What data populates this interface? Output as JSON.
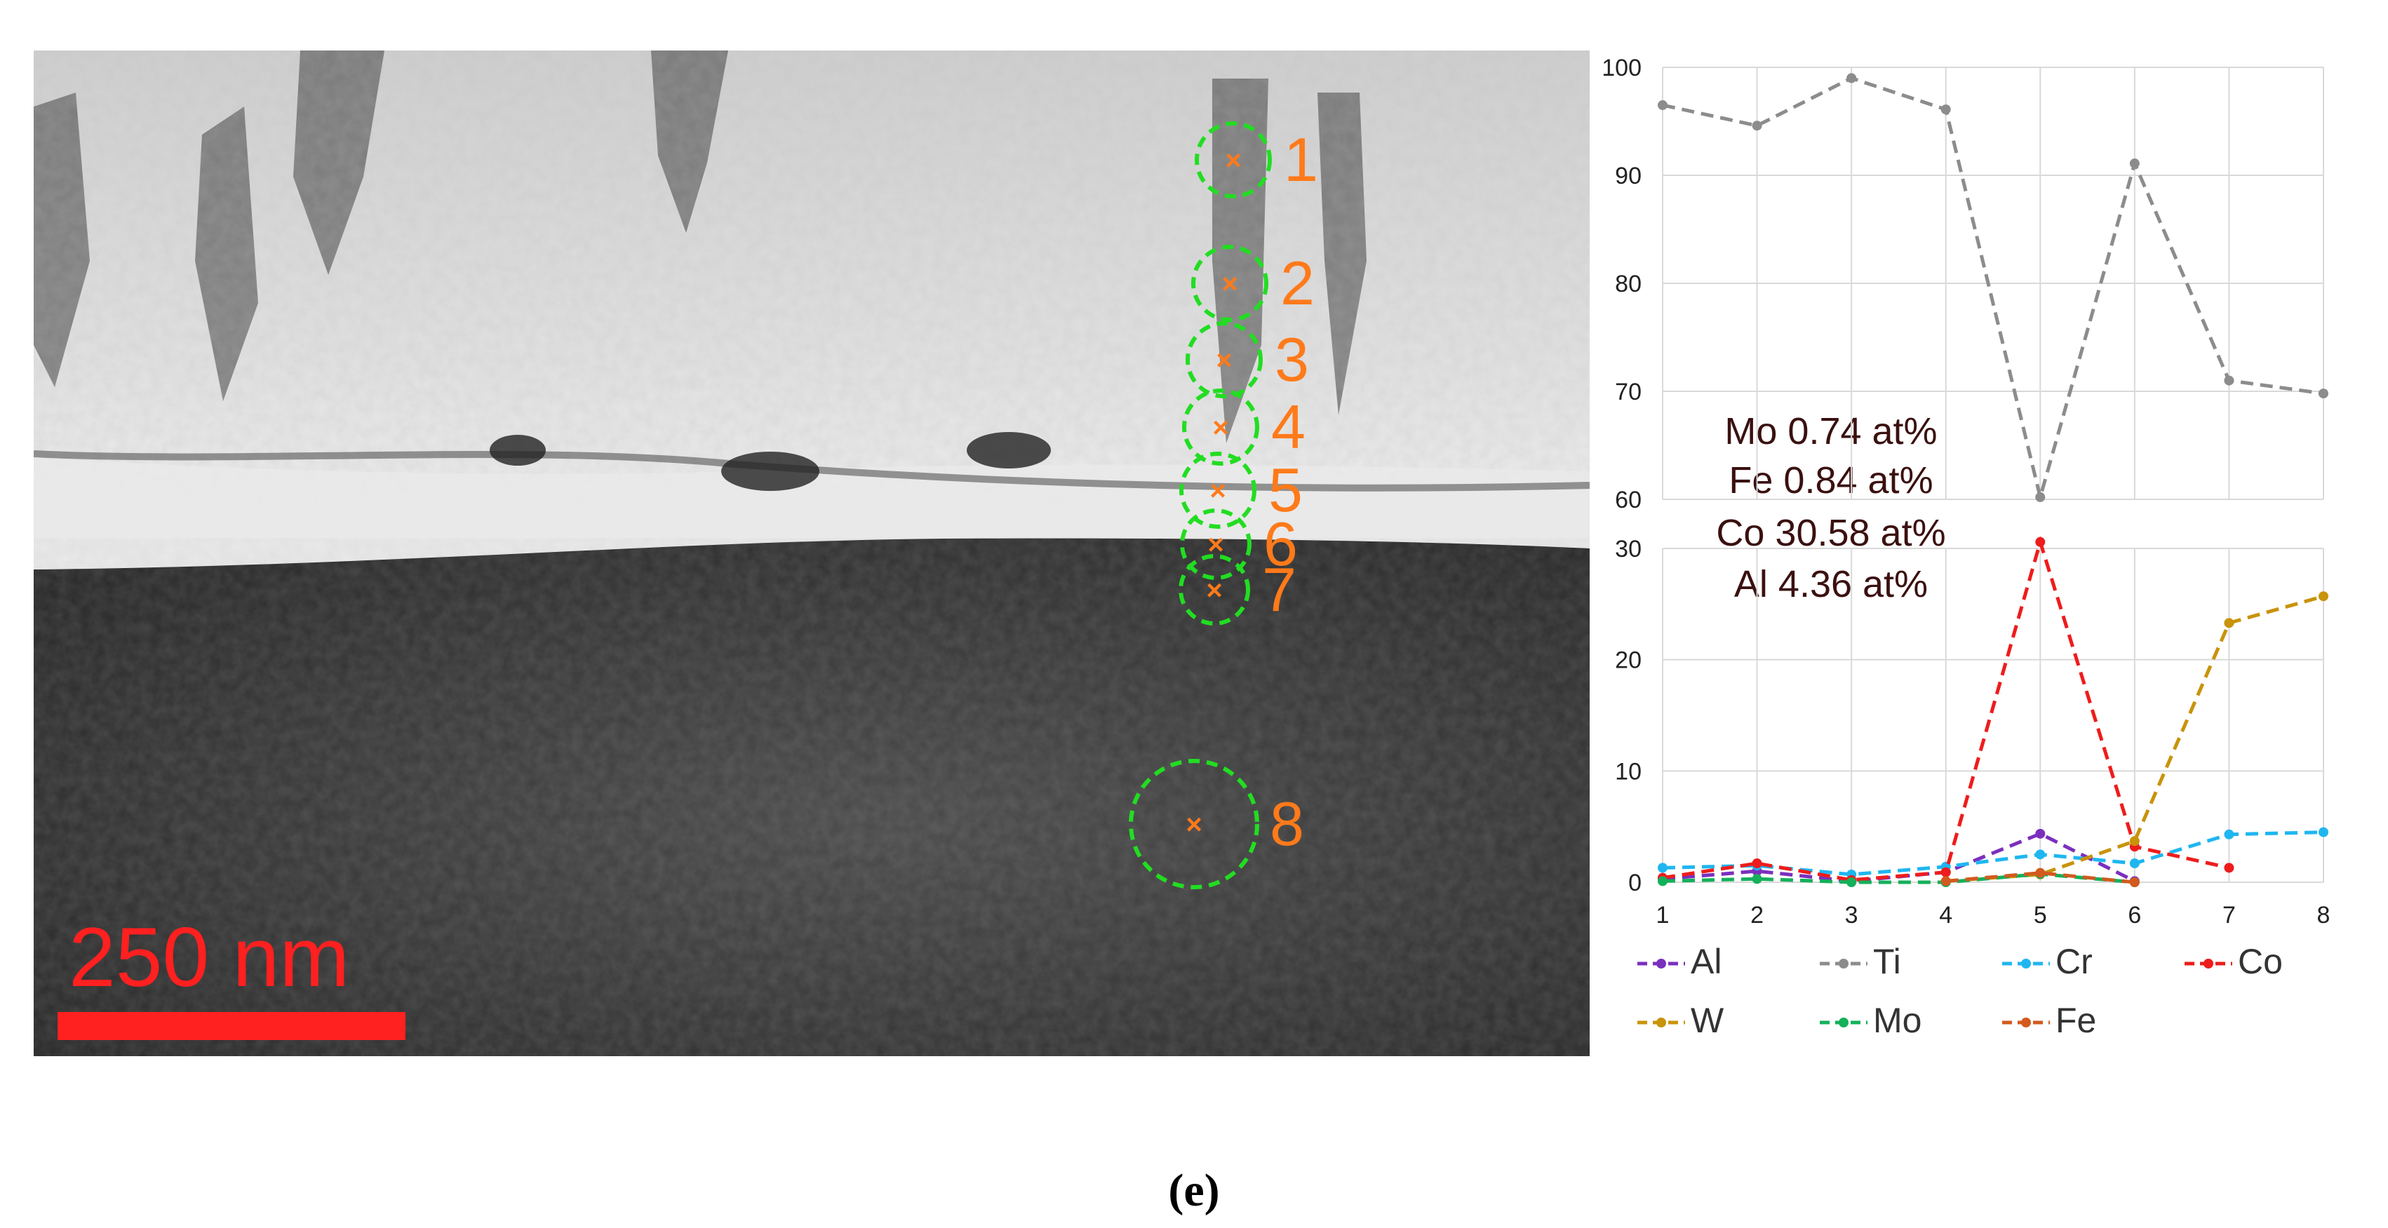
{
  "micrograph": {
    "scale_bar_label": "250 nm",
    "points": [
      "1",
      "2",
      "3",
      "4",
      "5",
      "6",
      "7",
      "8"
    ]
  },
  "annotation": {
    "lines": [
      "Mo 0.74 at%",
      "Fe 0.84 at%",
      "Co 30.58 at%",
      "Al 4.36 at%"
    ]
  },
  "caption": "(e)",
  "colors": {
    "Al": "#7b2fbe",
    "Ti": "#8c8c8c",
    "Cr": "#1fb6f0",
    "Co": "#ee1c1c",
    "W": "#c9930a",
    "Mo": "#14b05a",
    "Fe": "#d25a1e",
    "marker_ring": "#22dd22",
    "marker_label": "#ff7a1a",
    "scale": "#ff2020"
  },
  "chart_data": [
    {
      "type": "line",
      "title": "",
      "xlabel": "",
      "ylabel": "",
      "ylim": [
        60,
        100
      ],
      "yticks": [
        60,
        70,
        80,
        90,
        100
      ],
      "grid": true,
      "series": [
        {
          "name": "Ti",
          "x": [
            1,
            2,
            3,
            4,
            5,
            6,
            7,
            8
          ],
          "values": [
            96.5,
            94.6,
            99.0,
            96.1,
            60.2,
            91.1,
            71.0,
            69.8
          ]
        }
      ]
    },
    {
      "type": "line",
      "title": "",
      "xlabel": "",
      "ylabel": "",
      "ylim": [
        0,
        30
      ],
      "yticks": [
        0,
        10,
        20,
        30
      ],
      "xticks": [
        1,
        2,
        3,
        4,
        5,
        6,
        7,
        8
      ],
      "grid": true,
      "legend_placement": "bottom",
      "series": [
        {
          "name": "Al",
          "x": [
            1,
            2,
            3,
            4,
            5,
            6
          ],
          "values": [
            0.3,
            1.0,
            0.1,
            0.9,
            4.36,
            0.1
          ]
        },
        {
          "name": "Cr",
          "x": [
            1,
            2,
            3,
            4,
            5,
            6,
            7,
            8
          ],
          "values": [
            1.3,
            1.5,
            0.7,
            1.4,
            2.5,
            1.7,
            4.3,
            4.5
          ]
        },
        {
          "name": "Co",
          "x": [
            1,
            2,
            3,
            4,
            5,
            6,
            7
          ],
          "values": [
            0.4,
            1.7,
            0.2,
            0.9,
            30.58,
            3.2,
            1.3
          ]
        },
        {
          "name": "W",
          "x": [
            4,
            5,
            6,
            7,
            8
          ],
          "values": [
            0.1,
            0.7,
            3.7,
            23.3,
            25.7
          ]
        },
        {
          "name": "Mo",
          "x": [
            1,
            2,
            3,
            4,
            5,
            6
          ],
          "values": [
            0.1,
            0.3,
            0.0,
            0.0,
            0.74,
            0.0
          ]
        },
        {
          "name": "Fe",
          "x": [
            4,
            5,
            6
          ],
          "values": [
            0.1,
            0.84,
            0.0
          ]
        }
      ],
      "legend": [
        "Al",
        "Ti",
        "Cr",
        "Co",
        "W",
        "Mo",
        "Fe"
      ]
    }
  ]
}
